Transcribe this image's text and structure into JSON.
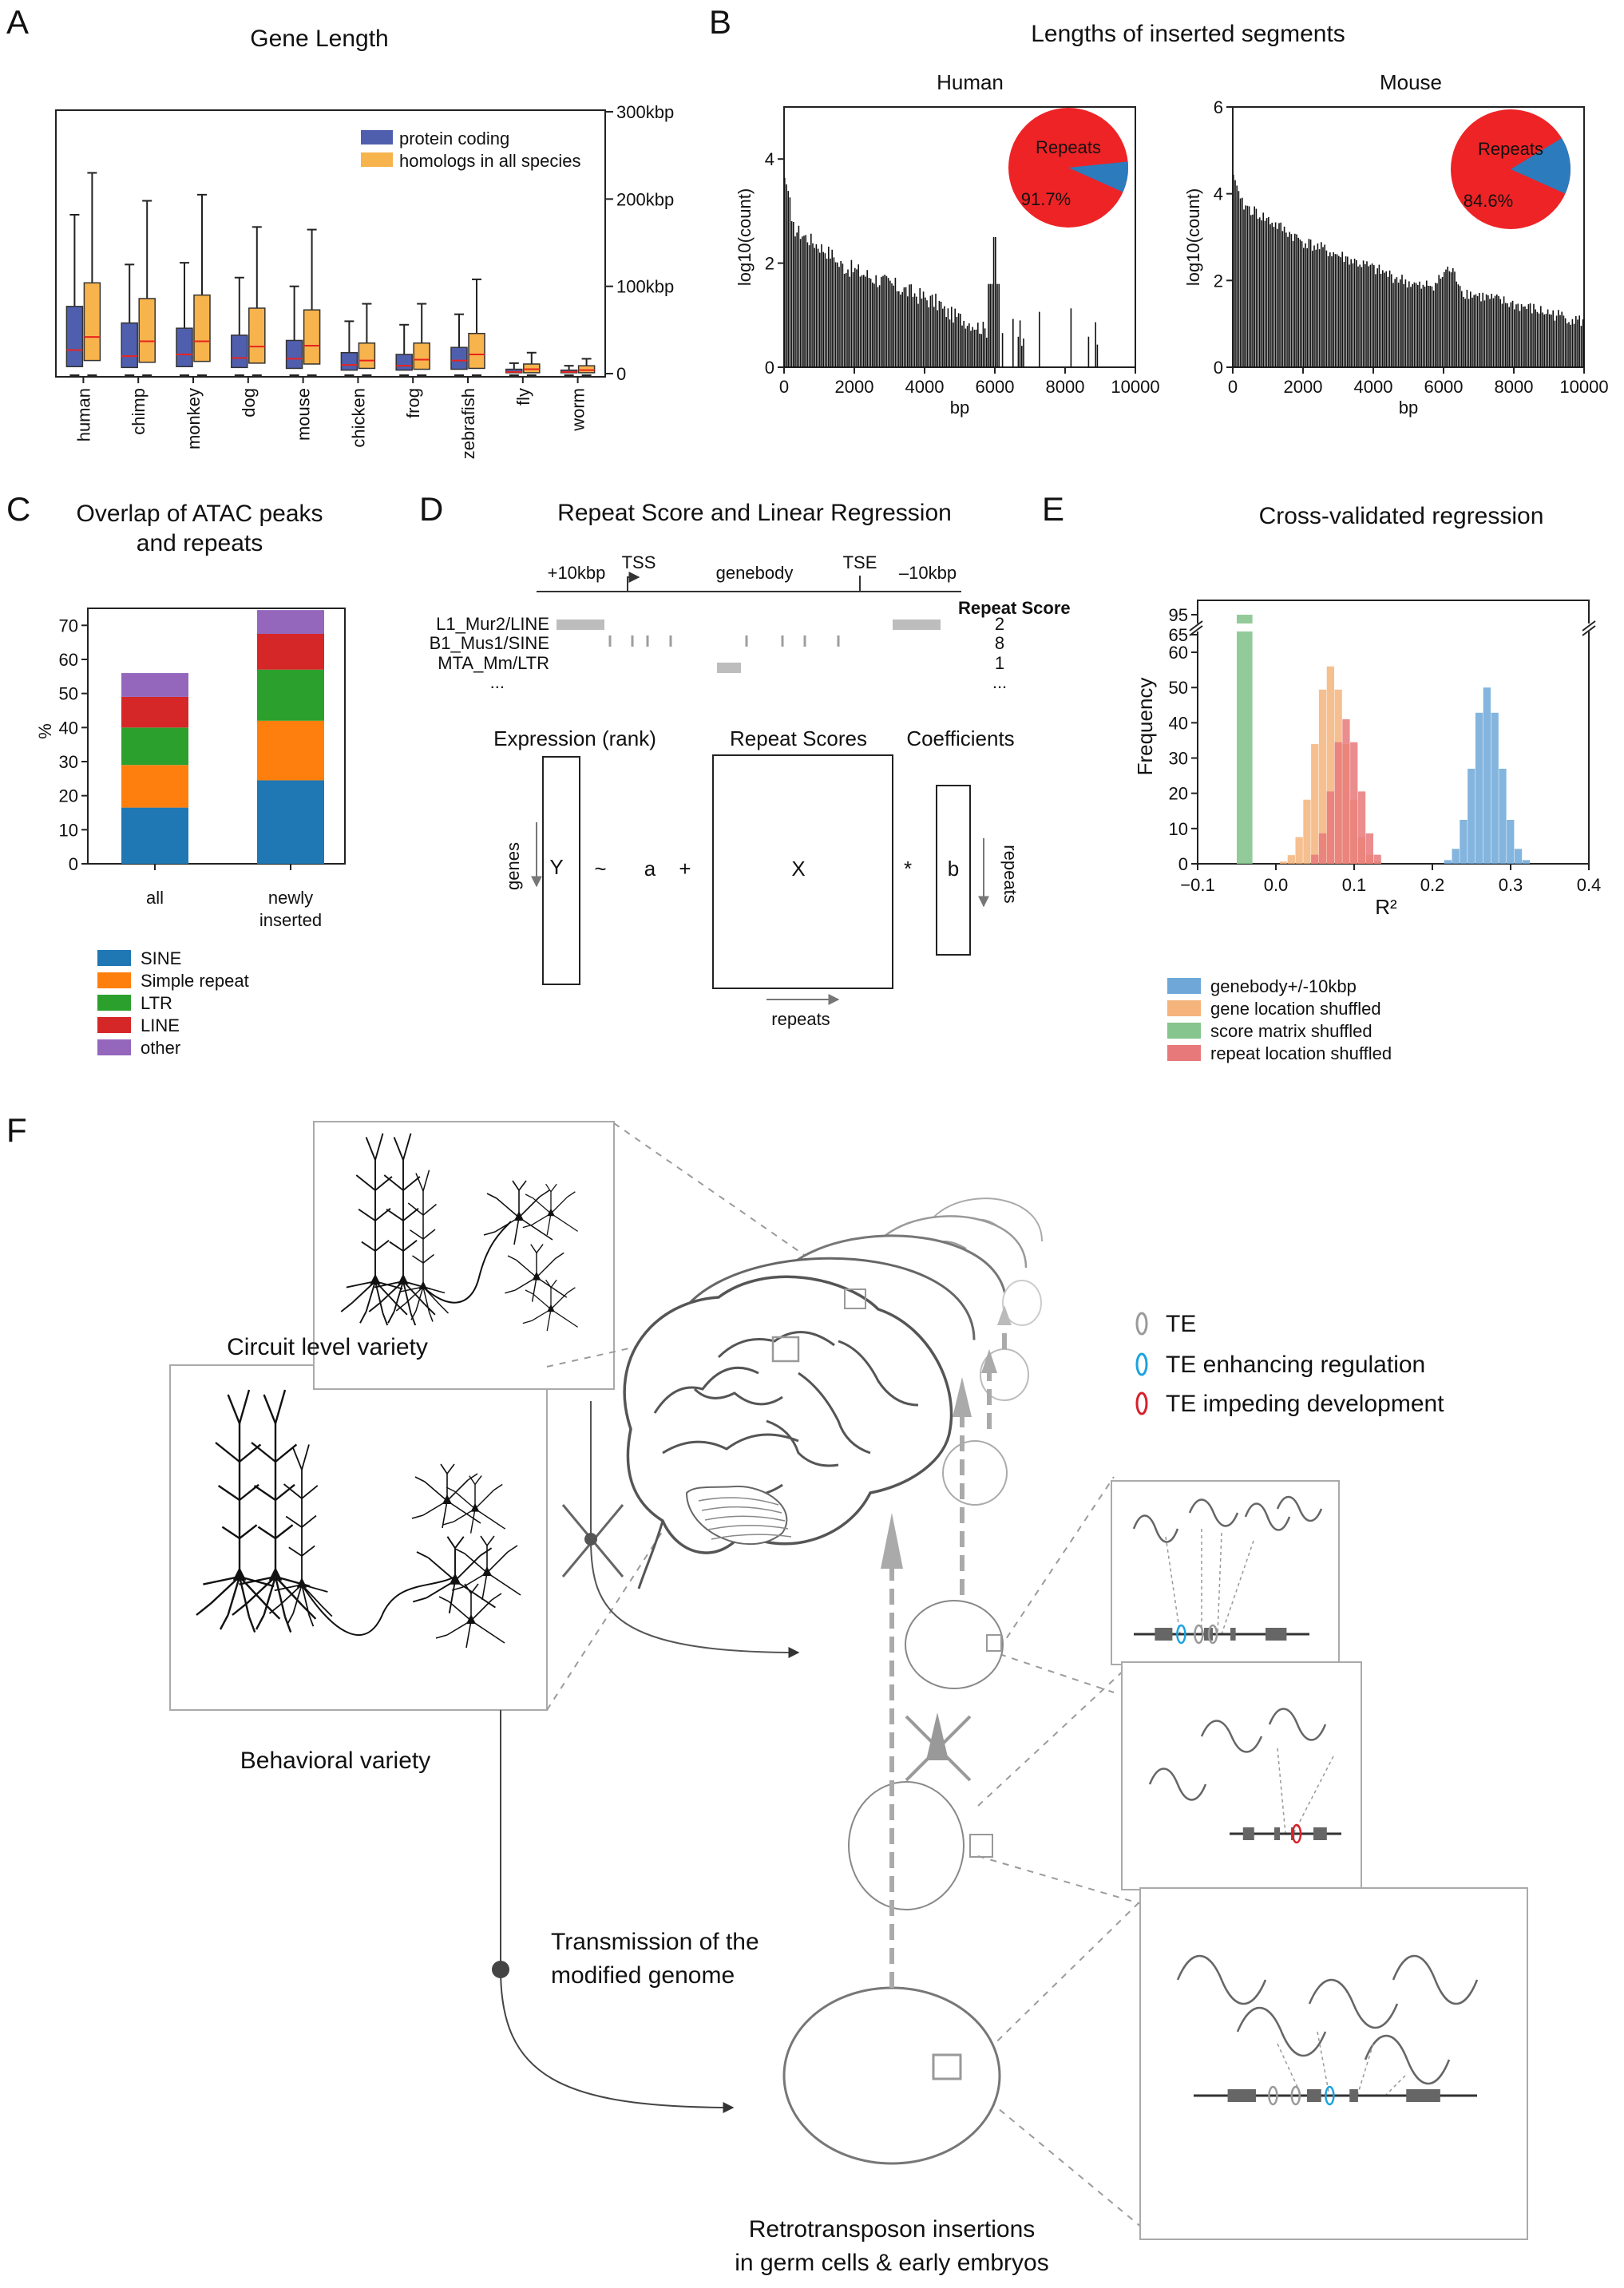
{
  "panel_letters": {
    "a": "A",
    "b": "B",
    "c": "C",
    "d": "D",
    "e": "E",
    "f": "F"
  },
  "colors": {
    "protein_coding": "#4f5fae",
    "homologs": "#f7b34c",
    "median": "#e8231f",
    "pie_red": "#ee2326",
    "pie_blue": "#2b7bbd",
    "sine": "#1f77b4",
    "simple": "#ff7f0e",
    "ltr": "#2ca02c",
    "line": "#d62728",
    "other": "#9467bd",
    "genebody": "#6fa8d8",
    "gene_shuffled": "#f4b47c",
    "score_shuffled": "#86c58e",
    "repeat_shuffled": "#e8797a",
    "te": "#9a9a9a",
    "te_enh": "#1ba3e0",
    "te_imp": "#d8202a"
  },
  "chart_data": [
    {
      "panel": "A",
      "type": "box",
      "title": "Gene Length",
      "categories": [
        "human",
        "chimp",
        "monkey",
        "dog",
        "mouse",
        "chicken",
        "frog",
        "zebrafish",
        "fly",
        "worm"
      ],
      "y_ticks": [
        "0",
        "100kbp",
        "200kbp",
        "300kbp"
      ],
      "ylim": [
        0,
        300
      ],
      "legend": [
        "protein coding",
        "homologs in all species"
      ],
      "series": [
        {
          "name": "protein coding",
          "boxes": [
            {
              "lo": 0,
              "q1": 8,
              "med": 27,
              "q3": 77,
              "hi": 182
            },
            {
              "lo": 0,
              "q1": 7,
              "med": 20,
              "q3": 58,
              "hi": 125
            },
            {
              "lo": 0,
              "q1": 8,
              "med": 22,
              "q3": 52,
              "hi": 127
            },
            {
              "lo": 0,
              "q1": 7,
              "med": 18,
              "q3": 44,
              "hi": 110
            },
            {
              "lo": 0,
              "q1": 6,
              "med": 17,
              "q3": 38,
              "hi": 100
            },
            {
              "lo": 0,
              "q1": 4,
              "med": 10,
              "q3": 24,
              "hi": 60
            },
            {
              "lo": 0,
              "q1": 4,
              "med": 9,
              "q3": 22,
              "hi": 56
            },
            {
              "lo": 0,
              "q1": 5,
              "med": 15,
              "q3": 30,
              "hi": 68
            },
            {
              "lo": 0,
              "q1": 1,
              "med": 2,
              "q3": 5,
              "hi": 12
            },
            {
              "lo": 0,
              "q1": 1,
              "med": 2,
              "q3": 4,
              "hi": 9
            }
          ]
        },
        {
          "name": "homologs in all species",
          "boxes": [
            {
              "lo": 0,
              "q1": 15,
              "med": 42,
              "q3": 104,
              "hi": 230
            },
            {
              "lo": 0,
              "q1": 13,
              "med": 37,
              "q3": 86,
              "hi": 198
            },
            {
              "lo": 0,
              "q1": 14,
              "med": 37,
              "q3": 90,
              "hi": 205
            },
            {
              "lo": 0,
              "q1": 12,
              "med": 31,
              "q3": 75,
              "hi": 168
            },
            {
              "lo": 0,
              "q1": 11,
              "med": 32,
              "q3": 73,
              "hi": 165
            },
            {
              "lo": 0,
              "q1": 6,
              "med": 15,
              "q3": 35,
              "hi": 80
            },
            {
              "lo": 0,
              "q1": 5,
              "med": 16,
              "q3": 35,
              "hi": 80
            },
            {
              "lo": 0,
              "q1": 6,
              "med": 22,
              "q3": 46,
              "hi": 108
            },
            {
              "lo": 0,
              "q1": 1,
              "med": 5,
              "q3": 11,
              "hi": 24
            },
            {
              "lo": 0,
              "q1": 1,
              "med": 4,
              "q3": 9,
              "hi": 17
            }
          ]
        }
      ]
    },
    {
      "panel": "B",
      "type": "bar",
      "title": "Lengths of inserted segments",
      "subplots": [
        {
          "name": "Human",
          "xlabel": "bp",
          "ylabel": "log10(count)",
          "xlim": [
            0,
            10000
          ],
          "ylim": [
            0,
            5
          ],
          "x_ticks": [
            "0",
            "2000",
            "4000",
            "6000",
            "8000",
            "10000"
          ],
          "y_ticks": [
            "0",
            "2",
            "4"
          ],
          "pie": {
            "label": "Repeats",
            "percent": "91.7%",
            "fraction": 0.917
          }
        },
        {
          "name": "Mouse",
          "xlabel": "bp",
          "ylabel": "log10(count)",
          "xlim": [
            0,
            10000
          ],
          "ylim": [
            0,
            6
          ],
          "x_ticks": [
            "0",
            "2000",
            "4000",
            "6000",
            "8000",
            "10000"
          ],
          "y_ticks": [
            "0",
            "2",
            "4",
            "6"
          ],
          "pie": {
            "label": "Repeats",
            "percent": "84.6%",
            "fraction": 0.846
          }
        }
      ]
    },
    {
      "panel": "C",
      "type": "bar",
      "title_lines": [
        "Overlap of ATAC peaks",
        "and repeats"
      ],
      "ylabel": "%",
      "ylim": [
        0,
        75
      ],
      "y_ticks": [
        "0",
        "10",
        "20",
        "30",
        "40",
        "50",
        "60",
        "70"
      ],
      "categories": [
        "all",
        "newly inserted"
      ],
      "category_lines": [
        [
          "all"
        ],
        [
          "newly",
          "inserted"
        ]
      ],
      "series": [
        {
          "name": "SINE",
          "values": [
            16.5,
            24.5
          ]
        },
        {
          "name": "Simple repeat",
          "values": [
            12.5,
            17.5
          ]
        },
        {
          "name": "LTR",
          "values": [
            11,
            15
          ]
        },
        {
          "name": "LINE",
          "values": [
            9,
            10.5
          ]
        },
        {
          "name": "other",
          "values": [
            7,
            7
          ]
        }
      ]
    },
    {
      "panel": "E",
      "type": "bar",
      "title": "Cross-validated regression",
      "xlabel": "R²",
      "ylabel": "Frequency",
      "xlim": [
        -0.1,
        0.4
      ],
      "x_ticks": [
        "−0.1",
        "0.0",
        "0.1",
        "0.2",
        "0.3",
        "0.4"
      ],
      "y_ticks": [
        "0",
        "10",
        "20",
        "30",
        "40",
        "50",
        "60",
        "65",
        "95"
      ],
      "legend": [
        "genebody+/-10kbp",
        "gene location shuffled",
        "score matrix shuffled",
        "repeat location shuffled"
      ]
    }
  ],
  "panelD": {
    "title": "Repeat Score and Linear Regression",
    "plus10": "+10kbp",
    "tss": "TSS",
    "genebody": "genebody",
    "tse": "TSE",
    "minus10": "–10kbp",
    "repeat_score": "Repeat Score",
    "rows": [
      {
        "name": "L1_Mur2/LINE",
        "score": "2"
      },
      {
        "name": "B1_Mus1/SINE",
        "score": "8"
      },
      {
        "name": "MTA_Mm/LTR",
        "score": "1"
      },
      {
        "name": "...",
        "score": "..."
      }
    ],
    "expr": "Expression (rank)",
    "repscores": "Repeat Scores",
    "coef": "Coefficients",
    "genes": "genes",
    "Y": "Y",
    "tilde": "~",
    "a": "a",
    "plus": "+",
    "X": "X",
    "star": "*",
    "b": "b",
    "repeats_v": "repeats",
    "repeats_h": "repeats"
  },
  "panelF": {
    "circuit": "Circuit level variety",
    "behavioral": "Behavioral variety",
    "transmission": [
      "Transmission of the",
      "modified genome"
    ],
    "retro": [
      "Retrotransposon insertions",
      "in germ cells & early embryos"
    ],
    "legend": [
      "TE",
      "TE enhancing regulation",
      "TE impeding development"
    ]
  }
}
